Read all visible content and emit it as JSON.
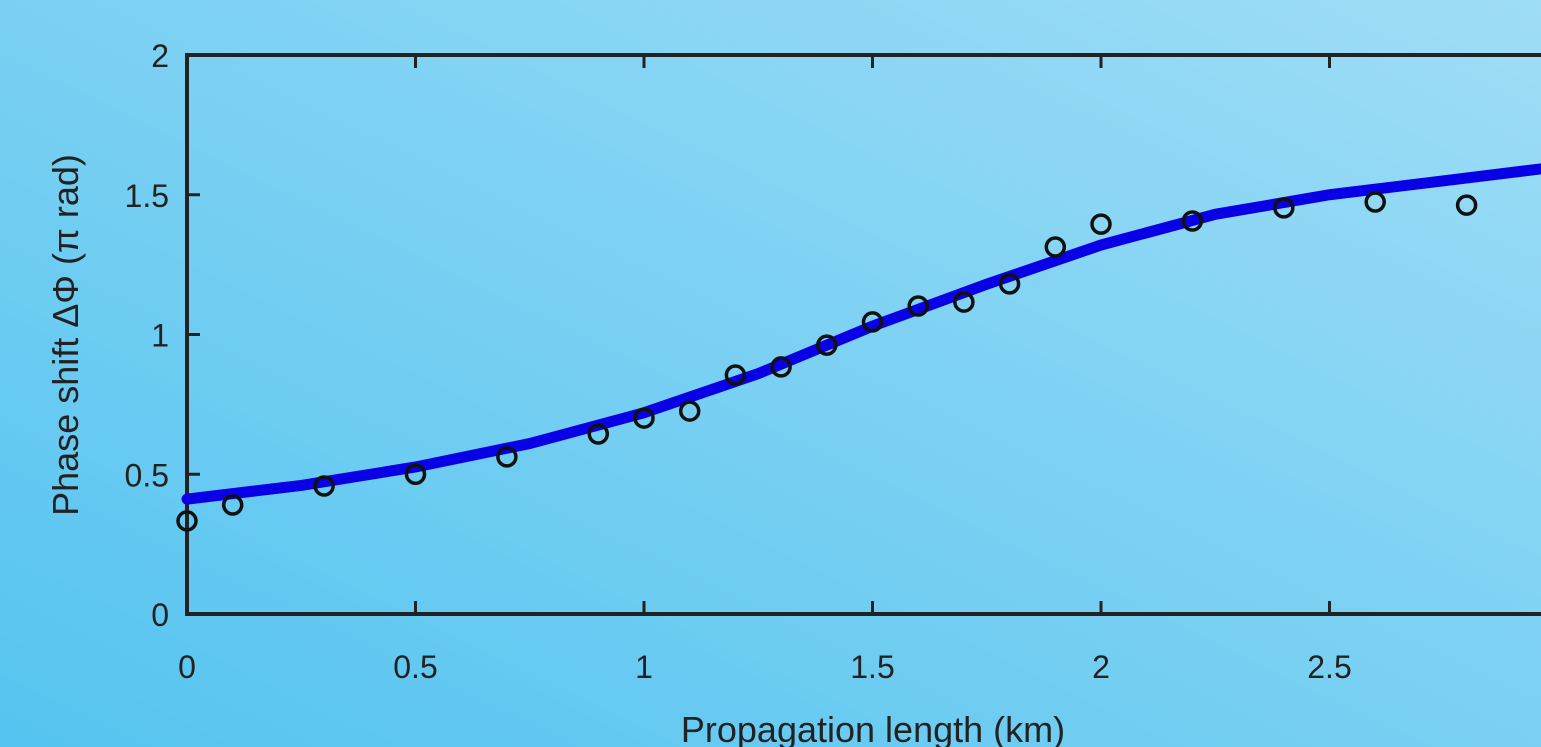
{
  "chart_data": {
    "type": "scatter",
    "x_label": "Propagation length (km)",
    "y_label": "Phase shift ΔΦ (π rad)",
    "xlim": [
      0,
      3
    ],
    "ylim": [
      0,
      2
    ],
    "xticks": [
      0,
      0.5,
      1,
      1.5,
      2,
      2.5
    ],
    "yticks": [
      0,
      0.5,
      1,
      1.5,
      2
    ],
    "series": [
      {
        "type": "scatter",
        "color": "#111111",
        "x": [
          0,
          0.1,
          0.3,
          0.5,
          0.7,
          0.9,
          1.0,
          1.1,
          1.2,
          1.3,
          1.4,
          1.5,
          1.6,
          1.7,
          1.8,
          1.9,
          2.0,
          2.2,
          2.4,
          2.6,
          2.8
        ],
        "values": [
          0.333,
          0.39,
          0.458,
          0.5,
          0.562,
          0.644,
          0.701,
          0.726,
          0.855,
          0.884,
          0.962,
          1.045,
          1.102,
          1.116,
          1.181,
          1.313,
          1.395,
          1.406,
          1.453,
          1.474,
          1.463
        ]
      },
      {
        "type": "line",
        "color": "#0a00e6",
        "x": [
          0,
          0.25,
          0.5,
          0.75,
          1.0,
          1.25,
          1.5,
          1.75,
          2.0,
          2.25,
          2.5,
          2.75,
          3.0
        ],
        "values": [
          0.411,
          0.46,
          0.526,
          0.61,
          0.72,
          0.86,
          1.03,
          1.18,
          1.32,
          1.43,
          1.5,
          1.55,
          1.6
        ]
      }
    ]
  }
}
